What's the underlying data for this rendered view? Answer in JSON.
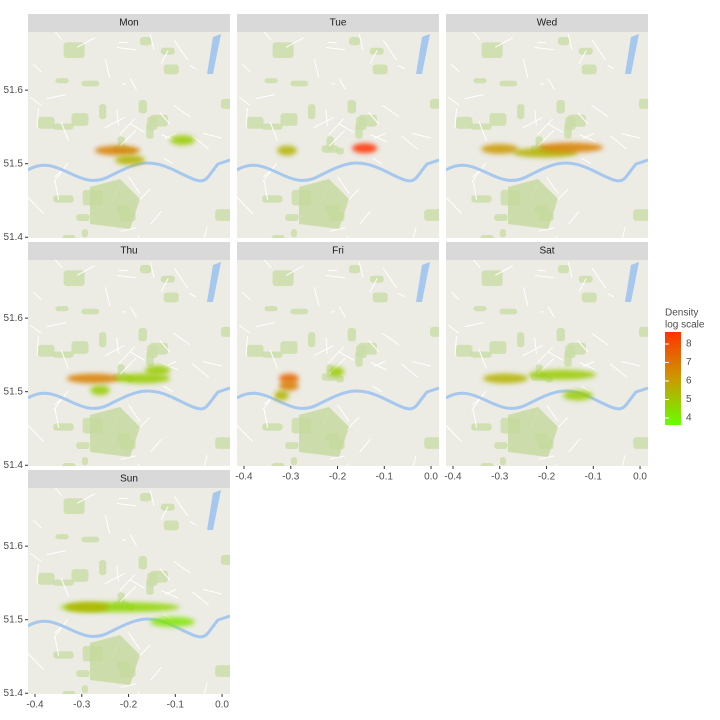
{
  "chart_data": {
    "type": "density-facets",
    "legend_title": [
      "Density",
      "log scale"
    ],
    "legend_lim": [
      3.62,
      8.65
    ],
    "legend_ticks": [
      4,
      5,
      6,
      7,
      8
    ],
    "colors": [
      "#66ff00",
      "#cc9900",
      "#ff3300"
    ],
    "xlim": [
      -0.415,
      0.017
    ],
    "ylim": [
      51.399,
      51.679
    ],
    "xticks": [
      -0.4,
      -0.3,
      -0.2,
      -0.1,
      {
        "value": 0,
        "label": "0.0"
      }
    ],
    "yticks": [
      51.4,
      51.5,
      51.6
    ],
    "facets": [
      {
        "name": "Mon",
        "hotspots": [
          {
            "x0": -0.272,
            "x1": -0.175,
            "y": 51.518,
            "density": 6.5
          },
          {
            "x0": -0.229,
            "x1": -0.165,
            "y": 51.505,
            "density": 5.5
          },
          {
            "x0": -0.111,
            "x1": -0.058,
            "y": 51.532,
            "density": 5
          }
        ]
      },
      {
        "name": "Tue",
        "hotspots": [
          {
            "x0": -0.169,
            "x1": -0.115,
            "y": 51.521,
            "density": 8
          },
          {
            "x0": -0.329,
            "x1": -0.287,
            "y": 51.518,
            "density": 5.5
          }
        ]
      },
      {
        "name": "Wed",
        "hotspots": [
          {
            "x0": -0.34,
            "x1": -0.26,
            "y": 51.52,
            "density": 6
          },
          {
            "x0": -0.272,
            "x1": -0.133,
            "y": 51.515,
            "density": 5.5
          },
          {
            "x0": -0.218,
            "x1": -0.079,
            "y": 51.522,
            "density": 6.5
          }
        ]
      },
      {
        "name": "Thu",
        "hotspots": [
          {
            "x0": -0.332,
            "x1": -0.218,
            "y": 51.518,
            "density": 6.5
          },
          {
            "x0": -0.229,
            "x1": -0.111,
            "y": 51.518,
            "density": 5
          },
          {
            "x0": -0.165,
            "x1": -0.111,
            "y": 51.529,
            "density": 5
          },
          {
            "x0": -0.282,
            "x1": -0.24,
            "y": 51.502,
            "density": 5
          }
        ]
      },
      {
        "name": "Fri",
        "hotspots": [
          {
            "x0": -0.325,
            "x1": -0.283,
            "y": 51.518,
            "density": 7
          },
          {
            "x0": -0.325,
            "x1": -0.283,
            "y": 51.508,
            "density": 6.5
          },
          {
            "x0": -0.336,
            "x1": -0.304,
            "y": 51.495,
            "density": 5.5
          },
          {
            "x0": -0.218,
            "x1": -0.186,
            "y": 51.527,
            "density": 5
          }
        ]
      },
      {
        "name": "Sat",
        "hotspots": [
          {
            "x0": -0.336,
            "x1": -0.24,
            "y": 51.518,
            "density": 5.5
          },
          {
            "x0": -0.24,
            "x1": -0.094,
            "y": 51.523,
            "density": 5
          },
          {
            "x0": -0.165,
            "x1": -0.101,
            "y": 51.495,
            "density": 5
          }
        ]
      },
      {
        "name": "Sun",
        "hotspots": [
          {
            "x0": -0.347,
            "x1": -0.09,
            "y": 51.517,
            "density": 4.8
          },
          {
            "x0": -0.336,
            "x1": -0.24,
            "y": 51.517,
            "density": 5.5
          },
          {
            "x0": -0.154,
            "x1": -0.058,
            "y": 51.497,
            "density": 4.5
          }
        ]
      }
    ]
  }
}
